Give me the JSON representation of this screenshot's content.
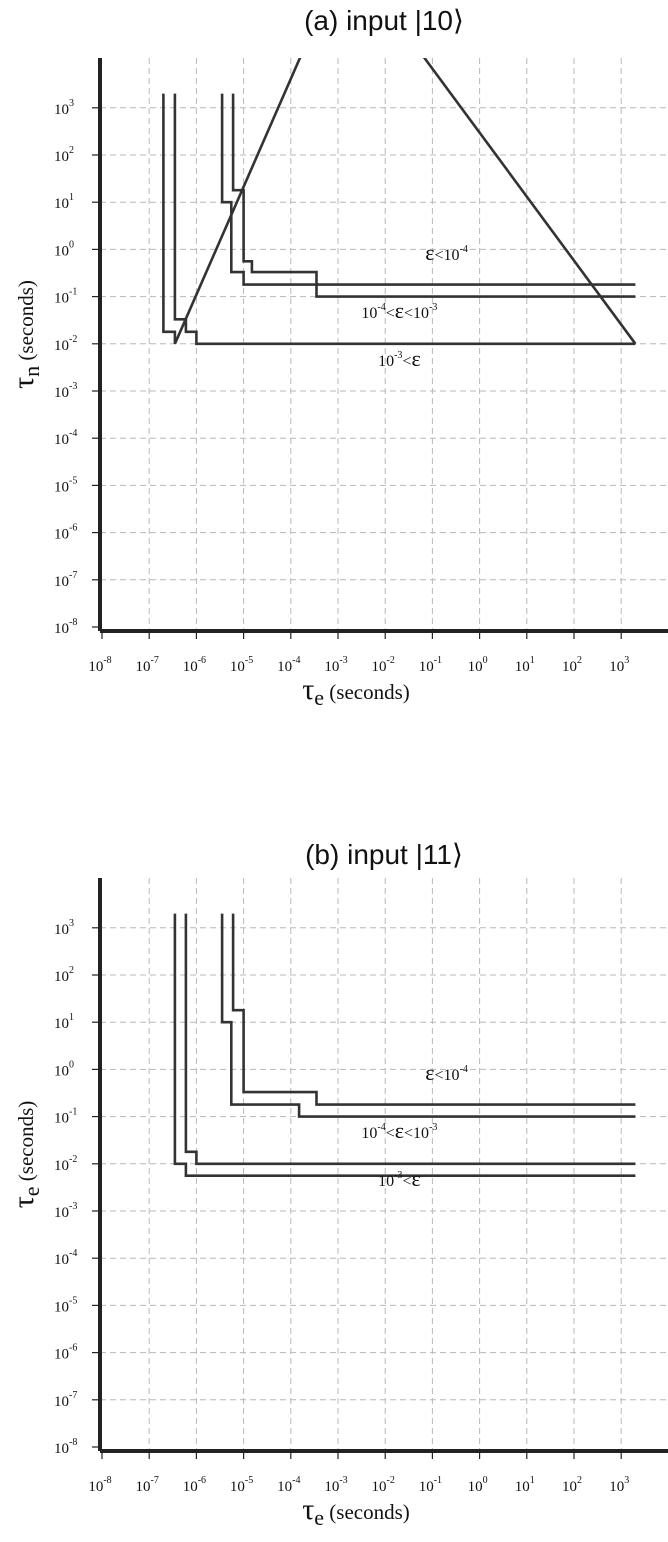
{
  "chart_data": [
    {
      "type": "line",
      "title": "(a) input |10⟩",
      "xlabel": {
        "sym": "τ",
        "sub": "e",
        "unit": "(seconds)"
      },
      "ylabel": {
        "sym": "τ",
        "sub": "n",
        "unit": "(seconds)"
      },
      "x_scale": "log",
      "y_scale": "log",
      "xlim_exp": [
        -8,
        3
      ],
      "ylim_exp": [
        -8,
        3
      ],
      "x_tick_exps": [
        -8,
        -7,
        -6,
        -5,
        -4,
        -3,
        -2,
        -1,
        0,
        1,
        2,
        3
      ],
      "y_tick_exps": [
        -8,
        -7,
        -6,
        -5,
        -4,
        -3,
        -2,
        -1,
        0,
        1,
        2,
        3
      ],
      "grid": true,
      "series": [
        {
          "points": [
            [
              2e-07,
              2000
            ],
            [
              2e-07,
              0.018
            ],
            [
              3.5e-07,
              0.018
            ],
            [
              3.5e-07,
              0.01
            ],
            [
              0.0015,
              2000000
            ],
            [
              2000,
              0.01
            ]
          ]
        },
        {
          "points": [
            [
              3.5e-07,
              2000
            ],
            [
              3.5e-07,
              0.033
            ],
            [
              6e-07,
              0.033
            ],
            [
              6e-07,
              0.018
            ],
            [
              1e-06,
              0.018
            ],
            [
              1e-06,
              0.01
            ],
            [
              2000,
              0.01
            ]
          ]
        },
        {
          "points": [
            [
              3.5e-06,
              2000
            ],
            [
              3.5e-06,
              10
            ],
            [
              5.5e-06,
              10
            ],
            [
              5.5e-06,
              0.33
            ],
            [
              1e-05,
              0.33
            ],
            [
              1e-05,
              0.18
            ],
            [
              0.00035,
              0.18
            ],
            [
              0.00035,
              0.1
            ],
            [
              2000,
              0.1
            ]
          ]
        },
        {
          "points": [
            [
              6e-06,
              2000
            ],
            [
              6e-06,
              18
            ],
            [
              1e-05,
              18
            ],
            [
              1e-05,
              0.56
            ],
            [
              1.5e-05,
              0.56
            ],
            [
              1.5e-05,
              0.33
            ],
            [
              0.00035,
              0.33
            ],
            [
              0.00035,
              0.18
            ],
            [
              2000,
              0.18
            ]
          ]
        }
      ],
      "annotations": [
        {
          "parts": [
            "ε",
            "<10",
            "-4"
          ],
          "x": 0.2,
          "y": 0.6
        },
        {
          "parts": [
            "10",
            "-4",
            "<",
            "ε",
            "<10",
            "-3"
          ],
          "x": 0.02,
          "y": 0.035
        },
        {
          "parts": [
            "10",
            "-3",
            "<",
            "ε"
          ],
          "x": 0.02,
          "y": 0.0034
        }
      ]
    },
    {
      "type": "line",
      "title": "(b) input |11⟩",
      "xlabel": {
        "sym": "τ",
        "sub": "e",
        "unit": "(seconds)"
      },
      "ylabel": {
        "sym": "τ",
        "sub": "e",
        "unit": "(seconds)"
      },
      "x_scale": "log",
      "y_scale": "log",
      "xlim_exp": [
        -8,
        3
      ],
      "ylim_exp": [
        -8,
        3
      ],
      "x_tick_exps": [
        -8,
        -7,
        -6,
        -5,
        -4,
        -3,
        -2,
        -1,
        0,
        1,
        2,
        3
      ],
      "y_tick_exps": [
        -8,
        -7,
        -6,
        -5,
        -4,
        -3,
        -2,
        -1,
        0,
        1,
        2,
        3
      ],
      "grid": true,
      "series": [
        {
          "points": [
            [
              3.5e-07,
              2000
            ],
            [
              3.5e-07,
              0.01
            ],
            [
              6e-07,
              0.01
            ],
            [
              6e-07,
              0.0056
            ],
            [
              2000,
              0.0056
            ]
          ]
        },
        {
          "points": [
            [
              6e-07,
              2000
            ],
            [
              6e-07,
              0.018
            ],
            [
              1e-06,
              0.018
            ],
            [
              1e-06,
              0.01
            ],
            [
              2000,
              0.01
            ]
          ]
        },
        {
          "points": [
            [
              3.5e-06,
              2000
            ],
            [
              3.5e-06,
              10
            ],
            [
              5.5e-06,
              10
            ],
            [
              5.5e-06,
              0.18
            ],
            [
              0.00015,
              0.18
            ],
            [
              0.00015,
              0.1
            ],
            [
              2000,
              0.1
            ]
          ]
        },
        {
          "points": [
            [
              6e-06,
              2000
            ],
            [
              6e-06,
              18
            ],
            [
              1e-05,
              18
            ],
            [
              1e-05,
              0.33
            ],
            [
              0.00035,
              0.33
            ],
            [
              0.00035,
              0.18
            ],
            [
              2000,
              0.18
            ]
          ]
        }
      ],
      "annotations": [
        {
          "parts": [
            "ε",
            "<10",
            "-4"
          ],
          "x": 0.2,
          "y": 0.6
        },
        {
          "parts": [
            "10",
            "-4",
            "<",
            "ε",
            "<10",
            "-3"
          ],
          "x": 0.02,
          "y": 0.035
        },
        {
          "parts": [
            "10",
            "-3",
            "<",
            "ε"
          ],
          "x": 0.02,
          "y": 0.0034
        }
      ]
    }
  ]
}
